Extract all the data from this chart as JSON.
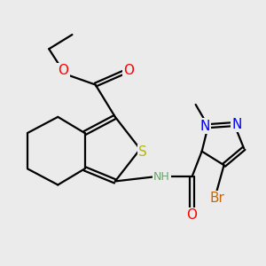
{
  "background_color": "#ebebeb",
  "atom_colors": {
    "C": "#000000",
    "H": "#6fa06f",
    "N": "#0000ff",
    "O": "#ff0000",
    "S": "#b8b800",
    "Br": "#cc6600"
  },
  "bond_color": "#000000",
  "bond_width": 1.6,
  "font_size": 10
}
